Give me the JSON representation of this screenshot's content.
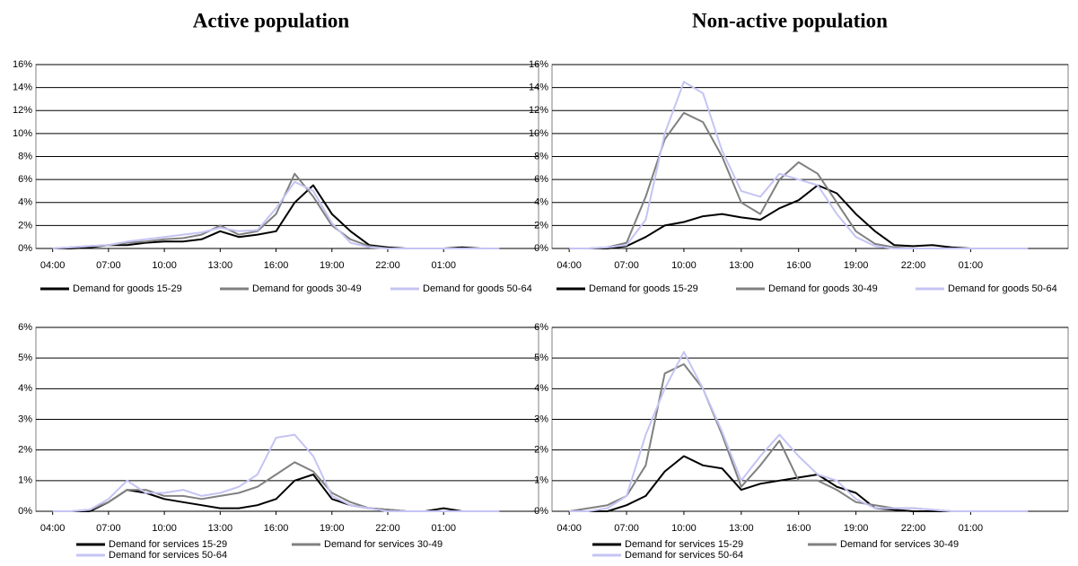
{
  "chart_data": [
    {
      "type": "line",
      "title": "Active population",
      "x": [
        4,
        5,
        6,
        7,
        8,
        9,
        10,
        11,
        12,
        13,
        14,
        15,
        16,
        17,
        18,
        19,
        20,
        21,
        22,
        23,
        24,
        25,
        26,
        27,
        28
      ],
      "xlim": [
        3.1,
        30.1
      ],
      "xticks": [
        {
          "value": 4,
          "label": "04:00"
        },
        {
          "value": 7,
          "label": "07:00"
        },
        {
          "value": 10,
          "label": "10:00"
        },
        {
          "value": 13,
          "label": "13:00"
        },
        {
          "value": 16,
          "label": "16:00"
        },
        {
          "value": 19,
          "label": "19:00"
        },
        {
          "value": 22,
          "label": "22:00"
        },
        {
          "value": 25,
          "label": "01:00"
        }
      ],
      "ylim": [
        0,
        16
      ],
      "yticks": [
        {
          "value": 0,
          "label": "0%"
        },
        {
          "value": 2,
          "label": "2%"
        },
        {
          "value": 4,
          "label": "4%"
        },
        {
          "value": 6,
          "label": "6%"
        },
        {
          "value": 8,
          "label": "8%"
        },
        {
          "value": 10,
          "label": "10%"
        },
        {
          "value": 12,
          "label": "12%"
        },
        {
          "value": 14,
          "label": "14%"
        },
        {
          "value": 16,
          "label": "16%"
        }
      ],
      "grid": true,
      "series": [
        {
          "name": "Demand for goods 15-29",
          "color": "#000000",
          "values": [
            0,
            0,
            0.1,
            0.3,
            0.3,
            0.5,
            0.6,
            0.6,
            0.8,
            1.5,
            1.0,
            1.2,
            1.5,
            4.0,
            5.5,
            3.0,
            1.5,
            0.3,
            0.1,
            0,
            0,
            0,
            0.1,
            0,
            0
          ]
        },
        {
          "name": "Demand for goods 30-49",
          "color": "#808080",
          "values": [
            0,
            0.1,
            0.2,
            0.3,
            0.5,
            0.6,
            0.8,
            0.9,
            1.2,
            2.0,
            1.2,
            1.5,
            3.0,
            6.5,
            4.5,
            2.0,
            0.8,
            0.2,
            0,
            0,
            0,
            0,
            0,
            0,
            0
          ]
        },
        {
          "name": "Demand for goods 50-64",
          "color": "#c4c4f4",
          "values": [
            0,
            0.1,
            0.2,
            0.3,
            0.6,
            0.8,
            1.0,
            1.2,
            1.4,
            1.8,
            1.5,
            1.6,
            3.5,
            5.8,
            5.0,
            2.2,
            0.5,
            0.1,
            0,
            0,
            0,
            0,
            0,
            0,
            0
          ]
        }
      ]
    },
    {
      "type": "line",
      "title": "Non-active population",
      "x": [
        4,
        5,
        6,
        7,
        8,
        9,
        10,
        11,
        12,
        13,
        14,
        15,
        16,
        17,
        18,
        19,
        20,
        21,
        22,
        23,
        24,
        25,
        26,
        27,
        28
      ],
      "xlim": [
        3.1,
        30.1
      ],
      "xticks": [
        {
          "value": 4,
          "label": "04:00"
        },
        {
          "value": 7,
          "label": "07:00"
        },
        {
          "value": 10,
          "label": "10:00"
        },
        {
          "value": 13,
          "label": "13:00"
        },
        {
          "value": 16,
          "label": "16:00"
        },
        {
          "value": 19,
          "label": "19:00"
        },
        {
          "value": 22,
          "label": "22:00"
        },
        {
          "value": 25,
          "label": "01:00"
        }
      ],
      "ylim": [
        0,
        16
      ],
      "yticks": [
        {
          "value": 0,
          "label": "0%"
        },
        {
          "value": 2,
          "label": "2%"
        },
        {
          "value": 4,
          "label": "4%"
        },
        {
          "value": 6,
          "label": "6%"
        },
        {
          "value": 8,
          "label": "8%"
        },
        {
          "value": 10,
          "label": "10%"
        },
        {
          "value": 12,
          "label": "12%"
        },
        {
          "value": 14,
          "label": "14%"
        },
        {
          "value": 16,
          "label": "16%"
        }
      ],
      "grid": true,
      "series": [
        {
          "name": "Demand for goods 15-29",
          "color": "#000000",
          "values": [
            0,
            0,
            0,
            0.2,
            1.0,
            2.0,
            2.3,
            2.8,
            3.0,
            2.7,
            2.5,
            3.5,
            4.2,
            5.5,
            4.8,
            3.0,
            1.5,
            0.3,
            0.2,
            0.3,
            0.1,
            0,
            0,
            0,
            0
          ]
        },
        {
          "name": "Demand for goods 30-49",
          "color": "#808080",
          "values": [
            0,
            0,
            0.1,
            0.5,
            4.5,
            9.5,
            11.8,
            11.0,
            8.0,
            4.0,
            3.0,
            6.0,
            7.5,
            6.5,
            4.0,
            1.5,
            0.4,
            0.1,
            0,
            0,
            0,
            0,
            0,
            0,
            0
          ]
        },
        {
          "name": "Demand for goods 50-64",
          "color": "#c4c4f4",
          "values": [
            0,
            0,
            0.1,
            0.3,
            2.5,
            10.0,
            14.5,
            13.5,
            8.5,
            5.0,
            4.5,
            6.5,
            6.0,
            5.5,
            3.0,
            1.0,
            0.2,
            0,
            0,
            0,
            0,
            0,
            0,
            0,
            0
          ]
        }
      ]
    },
    {
      "type": "line",
      "x": [
        4,
        5,
        6,
        7,
        8,
        9,
        10,
        11,
        12,
        13,
        14,
        15,
        16,
        17,
        18,
        19,
        20,
        21,
        22,
        23,
        24,
        25,
        26,
        27,
        28
      ],
      "xlim": [
        3.1,
        30.1
      ],
      "xticks": [
        {
          "value": 4,
          "label": "04:00"
        },
        {
          "value": 7,
          "label": "07:00"
        },
        {
          "value": 10,
          "label": "10:00"
        },
        {
          "value": 13,
          "label": "13:00"
        },
        {
          "value": 16,
          "label": "16:00"
        },
        {
          "value": 19,
          "label": "19:00"
        },
        {
          "value": 22,
          "label": "22:00"
        },
        {
          "value": 25,
          "label": "01:00"
        }
      ],
      "ylim": [
        0,
        6
      ],
      "yticks": [
        {
          "value": 0,
          "label": "0%"
        },
        {
          "value": 1,
          "label": "1%"
        },
        {
          "value": 2,
          "label": "2%"
        },
        {
          "value": 3,
          "label": "3%"
        },
        {
          "value": 4,
          "label": "4%"
        },
        {
          "value": 5,
          "label": "5%"
        },
        {
          "value": 6,
          "label": "6%"
        }
      ],
      "grid": true,
      "series": [
        {
          "name": "Demand for services 15-29",
          "color": "#000000",
          "values": [
            0,
            0,
            0,
            0.3,
            0.7,
            0.6,
            0.4,
            0.3,
            0.2,
            0.1,
            0.1,
            0.2,
            0.4,
            1.0,
            1.2,
            0.4,
            0.2,
            0.1,
            0.05,
            0,
            0,
            0.1,
            0,
            0,
            0
          ]
        },
        {
          "name": "Demand for services 30-49",
          "color": "#808080",
          "values": [
            0,
            0,
            0.05,
            0.3,
            0.7,
            0.7,
            0.5,
            0.5,
            0.4,
            0.5,
            0.6,
            0.8,
            1.2,
            1.6,
            1.3,
            0.6,
            0.3,
            0.1,
            0.05,
            0,
            0,
            0,
            0,
            0,
            0
          ]
        },
        {
          "name": "Demand for services 50-64",
          "color": "#c4c4f4",
          "values": [
            0,
            0,
            0.05,
            0.4,
            1.0,
            0.6,
            0.6,
            0.7,
            0.5,
            0.6,
            0.8,
            1.2,
            2.4,
            2.5,
            1.8,
            0.5,
            0.2,
            0.1,
            0,
            0,
            0,
            0,
            0,
            0,
            0
          ]
        }
      ]
    },
    {
      "type": "line",
      "x": [
        4,
        5,
        6,
        7,
        8,
        9,
        10,
        11,
        12,
        13,
        14,
        15,
        16,
        17,
        18,
        19,
        20,
        21,
        22,
        23,
        24,
        25,
        26,
        27,
        28
      ],
      "xlim": [
        3.1,
        30.1
      ],
      "xticks": [
        {
          "value": 4,
          "label": "04:00"
        },
        {
          "value": 7,
          "label": "07:00"
        },
        {
          "value": 10,
          "label": "10:00"
        },
        {
          "value": 13,
          "label": "13:00"
        },
        {
          "value": 16,
          "label": "16:00"
        },
        {
          "value": 19,
          "label": "19:00"
        },
        {
          "value": 22,
          "label": "22:00"
        },
        {
          "value": 25,
          "label": "01:00"
        }
      ],
      "ylim": [
        0,
        6
      ],
      "yticks": [
        {
          "value": 0,
          "label": "0%"
        },
        {
          "value": 1,
          "label": "1%"
        },
        {
          "value": 2,
          "label": "2%"
        },
        {
          "value": 3,
          "label": "3%"
        },
        {
          "value": 4,
          "label": "4%"
        },
        {
          "value": 5,
          "label": "5%"
        },
        {
          "value": 6,
          "label": "6%"
        }
      ],
      "grid": true,
      "series": [
        {
          "name": "Demand for services 15-29",
          "color": "#000000",
          "values": [
            0,
            0,
            0,
            0.2,
            0.5,
            1.3,
            1.8,
            1.5,
            1.4,
            0.7,
            0.9,
            1.0,
            1.1,
            1.2,
            0.8,
            0.6,
            0.1,
            0.05,
            0,
            0,
            0,
            0,
            0,
            0,
            0
          ]
        },
        {
          "name": "Demand for services 30-49",
          "color": "#808080",
          "values": [
            0,
            0.1,
            0.2,
            0.5,
            1.5,
            4.5,
            4.8,
            4.0,
            2.5,
            0.8,
            1.5,
            2.3,
            1.0,
            1.0,
            0.7,
            0.3,
            0.2,
            0.1,
            0.1,
            0.05,
            0,
            0,
            0,
            0,
            0
          ]
        },
        {
          "name": "Demand for services 50-64",
          "color": "#c4c4f4",
          "values": [
            0,
            0,
            0.1,
            0.5,
            2.5,
            4.0,
            5.2,
            4.0,
            2.6,
            1.0,
            1.8,
            2.5,
            1.8,
            1.2,
            1.0,
            0.4,
            0.1,
            0.1,
            0.1,
            0.05,
            0,
            0,
            0,
            0,
            0
          ]
        }
      ]
    }
  ]
}
